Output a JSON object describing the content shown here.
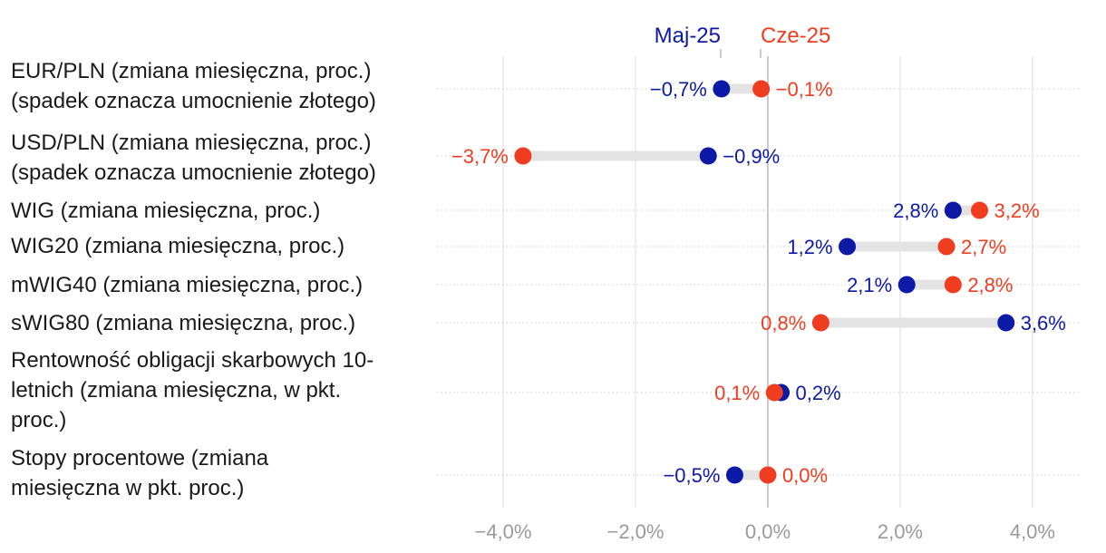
{
  "chart_data": {
    "type": "dumbbell",
    "title": "",
    "xlabel": "",
    "ylabel": "",
    "xlim": [
      -5.0,
      4.7
    ],
    "xticks": [
      -4.0,
      -2.0,
      0.0,
      2.0,
      4.0
    ],
    "xtick_labels": [
      "−4,0%",
      "−2,0%",
      "0,0%",
      "2,0%",
      "4,0%"
    ],
    "grid": true,
    "legend_placement": "top",
    "categories": [
      "EUR/PLN (zmiana miesięczna, proc.) (spadek oznacza umocnienie złotego)",
      "USD/PLN (zmiana miesięczna, proc.) (spadek oznacza umocnienie złotego)",
      "WIG (zmiana miesięczna, proc.)",
      "WIG20 (zmiana miesięczna, proc.)",
      "mWIG40 (zmiana miesięczna, proc.)",
      "sWIG80 (zmiana miesięczna, proc.)",
      "Rentowność obligacji skarbowych 10-letnich (zmiana miesięczna, w pkt. proc.)",
      "Stopy procentowe (zmiana miesięczna w pkt. proc.)"
    ],
    "series": [
      {
        "name": "Maj-25",
        "color": "#0d1aa8",
        "values": [
          -0.7,
          -0.9,
          2.8,
          1.2,
          2.1,
          3.6,
          0.2,
          -0.5
        ],
        "labels": [
          "−0,7%",
          "−0,9%",
          "2,8%",
          "1,2%",
          "2,1%",
          "3,6%",
          "0,2%",
          "−0,5%"
        ]
      },
      {
        "name": "Cze-25",
        "color": "#f03c1f",
        "values": [
          -0.1,
          -3.7,
          3.2,
          2.7,
          2.8,
          0.8,
          0.1,
          0.0
        ],
        "labels": [
          "−0,1%",
          "−3,7%",
          "3,2%",
          "2,7%",
          "2,8%",
          "0,8%",
          "0,1%",
          "0,0%"
        ]
      }
    ]
  },
  "category_lines": [
    [
      "EUR/PLN (zmiana miesięczna, proc.)",
      "(spadek oznacza umocnienie złotego)"
    ],
    [
      "USD/PLN (zmiana miesięczna, proc.)",
      "(spadek oznacza umocnienie złotego)"
    ],
    [
      "WIG (zmiana miesięczna, proc.)"
    ],
    [
      "WIG20 (zmiana miesięczna, proc.)"
    ],
    [
      "mWIG40 (zmiana miesięczna, proc.)"
    ],
    [
      "sWIG80 (zmiana miesięczna, proc.)"
    ],
    [
      "Rentowność obligacji skarbowych 10-",
      "letnich (zmiana miesięczna, w pkt.",
      "proc.)"
    ],
    [
      "Stopy procentowe (zmiana",
      "miesięczna w pkt. proc.)"
    ]
  ]
}
